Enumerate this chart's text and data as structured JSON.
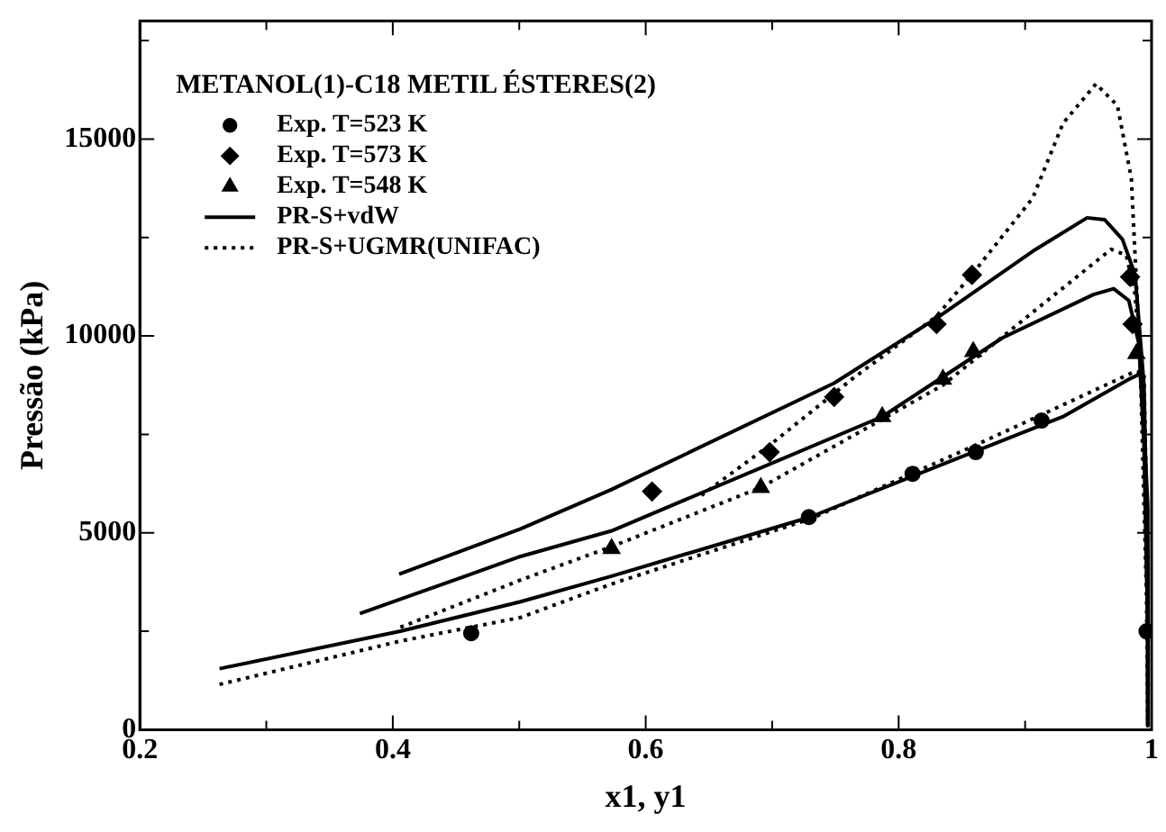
{
  "chart_data": {
    "type": "line",
    "xlabel": "x1, y1",
    "ylabel": "Pressão (kPa)",
    "legend_title": "METANOL(1)-C18 METIL ÉSTERES(2)",
    "legend": "top left",
    "grid": false,
    "xlim": [
      0.2,
      1.0
    ],
    "xticks": [
      0.2,
      {
        "value": 0.3,
        "label": null
      },
      0.4,
      {
        "value": 0.5,
        "label": null
      },
      0.6,
      {
        "value": 0.7,
        "label": null
      },
      0.8,
      {
        "value": 0.9,
        "label": null
      },
      {
        "value": 1.0,
        "label": "1"
      }
    ],
    "ylim": [
      0,
      18000
    ],
    "yticks": [
      0,
      {
        "value": 2500,
        "label": null
      },
      5000,
      {
        "value": 7500,
        "label": null
      },
      10000,
      {
        "value": 12500,
        "label": null
      },
      15000,
      {
        "value": 17500,
        "label": null
      }
    ],
    "series": [
      {
        "name": "Exp. T=523 K",
        "type": "scatter",
        "marker": "circle",
        "color": "#000000",
        "x": [
          0.462,
          0.729,
          0.811,
          0.861,
          0.913,
          0.996
        ],
        "values": [
          2450,
          5400,
          6500,
          7050,
          7850,
          2500
        ]
      },
      {
        "name": "Exp. T=573 K",
        "type": "scatter",
        "marker": "diamond",
        "color": "#000000",
        "x": [
          0.605,
          0.698,
          0.749,
          0.83,
          0.858,
          0.983,
          0.985
        ],
        "values": [
          6050,
          7050,
          8450,
          10300,
          11550,
          11500,
          10300
        ]
      },
      {
        "name": "Exp. T=548 K",
        "type": "scatter",
        "marker": "triangle",
        "color": "#000000",
        "x": [
          0.573,
          0.691,
          0.787,
          0.835,
          0.859,
          0.988
        ],
        "values": [
          4600,
          6150,
          7950,
          8900,
          9600,
          9550
        ]
      },
      {
        "name": "PR-S+vdW",
        "line_style": "solid",
        "color": "#000000",
        "x": [
          0.405,
          0.501,
          0.573,
          0.749,
          0.83,
          0.906,
          0.949,
          0.963,
          0.977,
          0.987,
          0.994,
          0.997,
          0.997
        ],
        "values": [
          3950,
          5100,
          6100,
          8800,
          10450,
          12150,
          13000,
          12950,
          12450,
          11550,
          8750,
          4100,
          100
        ]
      },
      {
        "line_style": "solid",
        "color": "#000000",
        "x": [
          0.374,
          0.501,
          0.573,
          0.787,
          0.882,
          0.954,
          0.97,
          0.982,
          0.99,
          0.994,
          0.997,
          0.997
        ],
        "values": [
          2950,
          4400,
          5050,
          7950,
          9950,
          11050,
          11200,
          10900,
          9800,
          7200,
          2550,
          100
        ]
      },
      {
        "line_style": "solid",
        "color": "#000000",
        "x": [
          0.263,
          0.406,
          0.501,
          0.573,
          0.73,
          0.859,
          0.93,
          0.982,
          0.992,
          0.997,
          0.997
        ],
        "values": [
          1550,
          2500,
          3250,
          3900,
          5400,
          7050,
          7950,
          8900,
          9050,
          5650,
          1000
        ]
      },
      {
        "name": "PR-S+UGMR(UNIFAC)",
        "line_style": "dotted",
        "color": "#000000",
        "x": [
          0.263,
          0.406,
          0.501,
          0.573,
          0.73,
          0.859,
          0.93,
          0.987,
          0.994,
          0.997,
          0.997
        ],
        "values": [
          1150,
          2250,
          2850,
          3700,
          5350,
          7200,
          8250,
          9100,
          9050,
          4100,
          250
        ]
      },
      {
        "line_style": "dotted",
        "color": "#000000",
        "x": [
          0.406,
          0.501,
          0.573,
          0.691,
          0.835,
          0.906,
          0.968,
          0.98,
          0.987,
          0.994,
          0.997,
          0.997
        ],
        "values": [
          2600,
          3800,
          4650,
          6150,
          8750,
          10600,
          12200,
          12050,
          11050,
          7950,
          2550,
          100
        ]
      },
      {
        "line_style": "dotted",
        "color": "#000000",
        "x": [
          0.644,
          0.697,
          0.763,
          0.83,
          0.859,
          0.906,
          0.93,
          0.956,
          0.973,
          0.984,
          0.991,
          0.996,
          0.997
        ],
        "values": [
          5950,
          7200,
          8900,
          10500,
          11600,
          13500,
          15400,
          16400,
          15850,
          14000,
          9350,
          3350,
          100
        ]
      }
    ]
  }
}
